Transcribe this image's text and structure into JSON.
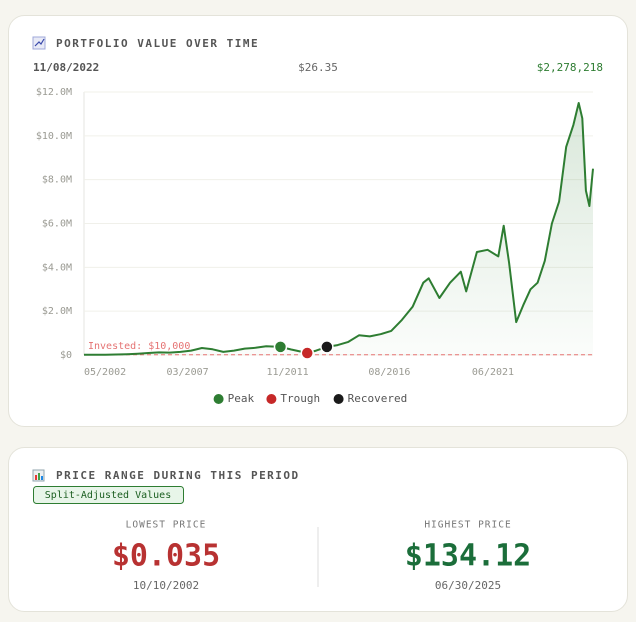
{
  "header": {
    "title": "PORTFOLIO VALUE OVER TIME",
    "hover_date": "11/08/2022",
    "hover_price": "$26.35",
    "hover_value": "$2,278,218"
  },
  "chart_data": {
    "type": "line",
    "color": "#2e7d32",
    "x": [
      "05/2002",
      "11/2002",
      "05/2003",
      "11/2003",
      "05/2004",
      "11/2004",
      "05/2005",
      "11/2005",
      "05/2006",
      "11/2006",
      "05/2007",
      "11/2007",
      "05/2008",
      "11/2008",
      "05/2009",
      "11/2009",
      "05/2010",
      "11/2010",
      "07/2011",
      "01/2012",
      "10/2012",
      "03/2013",
      "09/2013",
      "03/2014",
      "09/2014",
      "03/2015",
      "09/2015",
      "03/2016",
      "09/2016",
      "03/2017",
      "09/2017",
      "03/2018",
      "06/2018",
      "12/2018",
      "06/2019",
      "12/2019",
      "03/2020",
      "09/2020",
      "03/2021",
      "09/2021",
      "12/2021",
      "03/2022",
      "07/2022",
      "11/2022",
      "03/2023",
      "07/2023",
      "11/2023",
      "03/2024",
      "07/2024",
      "11/2024",
      "03/2025",
      "06/2025",
      "08/2025",
      "10/2025",
      "12/2025",
      "02/2026"
    ],
    "values": [
      10000,
      8000,
      15000,
      25000,
      35000,
      60000,
      90000,
      120000,
      110000,
      140000,
      200000,
      320000,
      260000,
      140000,
      200000,
      290000,
      330000,
      400000,
      370000,
      250000,
      90000,
      200000,
      370000,
      450000,
      600000,
      900000,
      850000,
      950000,
      1100000,
      1600000,
      2200000,
      3300000,
      3500000,
      2600000,
      3300000,
      3800000,
      2900000,
      4700000,
      4800000,
      4500000,
      5900000,
      4200000,
      1500000,
      2278218,
      3000000,
      3300000,
      4300000,
      6000000,
      7000000,
      9500000,
      10500000,
      11500000,
      10800000,
      7500000,
      6800000,
      8500000
    ],
    "xlim": [
      "05/2002",
      "02/2026"
    ],
    "xticks": [
      "05/2002",
      "03/2007",
      "11/2011",
      "08/2016",
      "06/2021"
    ],
    "ylim": [
      0,
      12000000
    ],
    "yticks": [
      {
        "value": 0,
        "label": "$0"
      },
      {
        "value": 2000000,
        "label": "$2.0M"
      },
      {
        "value": 4000000,
        "label": "$4.0M"
      },
      {
        "value": 6000000,
        "label": "$6.0M"
      },
      {
        "value": 8000000,
        "label": "$8.0M"
      },
      {
        "value": 10000000,
        "label": "$10.0M"
      },
      {
        "value": 12000000,
        "label": "$12.0M"
      }
    ],
    "grid": true,
    "invested": {
      "label": "Invested: $10,000",
      "value": 10000,
      "color": "#e57373"
    },
    "markers": [
      {
        "name": "Peak",
        "color": "#2e7d32",
        "x": "07/2011",
        "value": 370000
      },
      {
        "name": "Trough",
        "color": "#c62828",
        "x": "10/2012",
        "value": 90000
      },
      {
        "name": "Recovered",
        "color": "#1a1a1a",
        "x": "09/2013",
        "value": 370000
      }
    ]
  },
  "range": {
    "title": "PRICE RANGE DURING THIS PERIOD",
    "badge": "Split-Adjusted Values",
    "low_label": "LOWEST PRICE",
    "low_value": "$0.035",
    "low_date": "10/10/2002",
    "high_label": "HIGHEST PRICE",
    "high_value": "$134.12",
    "high_date": "06/30/2025"
  }
}
